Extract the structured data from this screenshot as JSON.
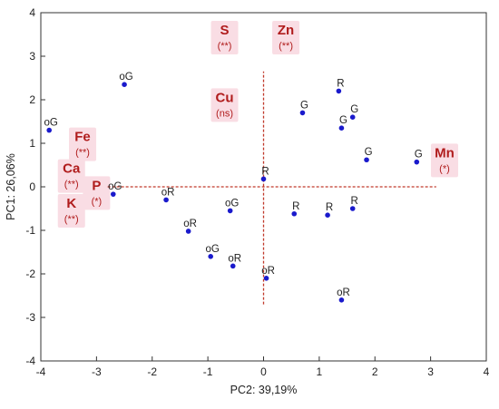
{
  "chart_data": {
    "type": "scatter",
    "xlabel": "PC2: 39,19%",
    "ylabel": "PC1: 26,06%",
    "xlim": [
      -4,
      4
    ],
    "ylim": [
      -4,
      4
    ],
    "x_ticks": [
      "-4",
      "-3",
      "-2",
      "-1",
      "0",
      "1",
      "2",
      "3",
      "4"
    ],
    "y_ticks": [
      "-4",
      "-3",
      "-2",
      "-1",
      "0",
      "1",
      "2",
      "3",
      "4"
    ],
    "grid": false,
    "legend": "none",
    "point_color": "#1a1acc",
    "vector_color": "#c0392b",
    "loading_color": "#b01c1c",
    "loading_highlight": "#f9dde4",
    "scores": [
      {
        "label": "oG",
        "x": -3.85,
        "y": 1.3
      },
      {
        "label": "oG",
        "x": -2.5,
        "y": 2.35
      },
      {
        "label": "oG",
        "x": -2.7,
        "y": -0.17
      },
      {
        "label": "oR",
        "x": -1.75,
        "y": -0.3
      },
      {
        "label": "oR",
        "x": -1.35,
        "y": -1.02
      },
      {
        "label": "oG",
        "x": -0.95,
        "y": -1.6
      },
      {
        "label": "oR",
        "x": -0.55,
        "y": -1.82
      },
      {
        "label": "oG",
        "x": -0.6,
        "y": -0.55
      },
      {
        "label": "R",
        "x": 0.0,
        "y": 0.18
      },
      {
        "label": "oR",
        "x": 0.05,
        "y": -2.1
      },
      {
        "label": "R",
        "x": 0.55,
        "y": -0.62
      },
      {
        "label": "R",
        "x": 1.15,
        "y": -0.65
      },
      {
        "label": "R",
        "x": 1.6,
        "y": -0.5
      },
      {
        "label": "R",
        "x": 1.35,
        "y": 2.2
      },
      {
        "label": "G",
        "x": 0.7,
        "y": 1.7
      },
      {
        "label": "G",
        "x": 1.4,
        "y": 1.35
      },
      {
        "label": "G",
        "x": 1.6,
        "y": 1.6
      },
      {
        "label": "G",
        "x": 1.85,
        "y": 0.62
      },
      {
        "label": "G",
        "x": 2.75,
        "y": 0.57
      },
      {
        "label": "oR",
        "x": 1.4,
        "y": -2.6
      }
    ],
    "loadings": [
      {
        "name": "S",
        "sig": "(**)",
        "x": -0.7,
        "y": 3.5
      },
      {
        "name": "Zn",
        "sig": "(**)",
        "x": 0.4,
        "y": 3.5
      },
      {
        "name": "Cu",
        "sig": "(ns)",
        "x": -0.7,
        "y": 1.95
      },
      {
        "name": "Fe",
        "sig": "(**)",
        "x": -3.25,
        "y": 1.05
      },
      {
        "name": "Ca",
        "sig": "(**)",
        "x": -3.45,
        "y": 0.32
      },
      {
        "name": "K",
        "sig": "(**)",
        "x": -3.45,
        "y": -0.48
      },
      {
        "name": "P",
        "sig": "(*)",
        "x": -3.0,
        "y": -0.07
      },
      {
        "name": "Mn",
        "sig": "(*)",
        "x": 3.25,
        "y": 0.68
      }
    ],
    "loading_lines": {
      "horizontal": {
        "y": 0.0,
        "x_from": -2.8,
        "x_to": 3.1
      },
      "vertical": {
        "x": 0.0,
        "y_from": -2.7,
        "y_to": 2.65
      }
    }
  }
}
